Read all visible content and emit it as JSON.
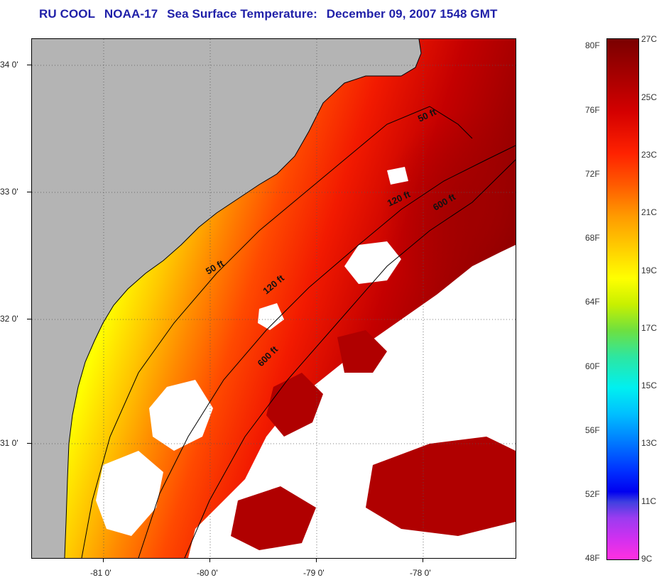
{
  "title": {
    "org": "RU COOL",
    "satellite": "NOAA-17",
    "text": "Sea Surface Temperature:",
    "date": "December 09, 2007 1548 GMT"
  },
  "map": {
    "y_axis_labels": [
      "34 0'",
      "33 0'",
      "32 0'",
      "31 0'"
    ],
    "x_axis_labels": [
      "-81 0'",
      "-80 0'",
      "-79 0'",
      "-78 0'"
    ],
    "contour_labels": [
      "50 ft",
      "120 ft",
      "600 ft",
      "50 ft",
      "120 ft",
      "600 ft"
    ],
    "colors": {
      "land": "#b4b4b4",
      "cloud": "#ffffff",
      "coast_line": "#000000"
    }
  },
  "colorbar": {
    "fahrenheit": [
      "80F",
      "76F",
      "72F",
      "68F",
      "64F",
      "60F",
      "56F",
      "52F",
      "48F"
    ],
    "celsius": [
      "27C",
      "25C",
      "23C",
      "21C",
      "19C",
      "17C",
      "15C",
      "13C",
      "11C",
      "9C"
    ]
  }
}
